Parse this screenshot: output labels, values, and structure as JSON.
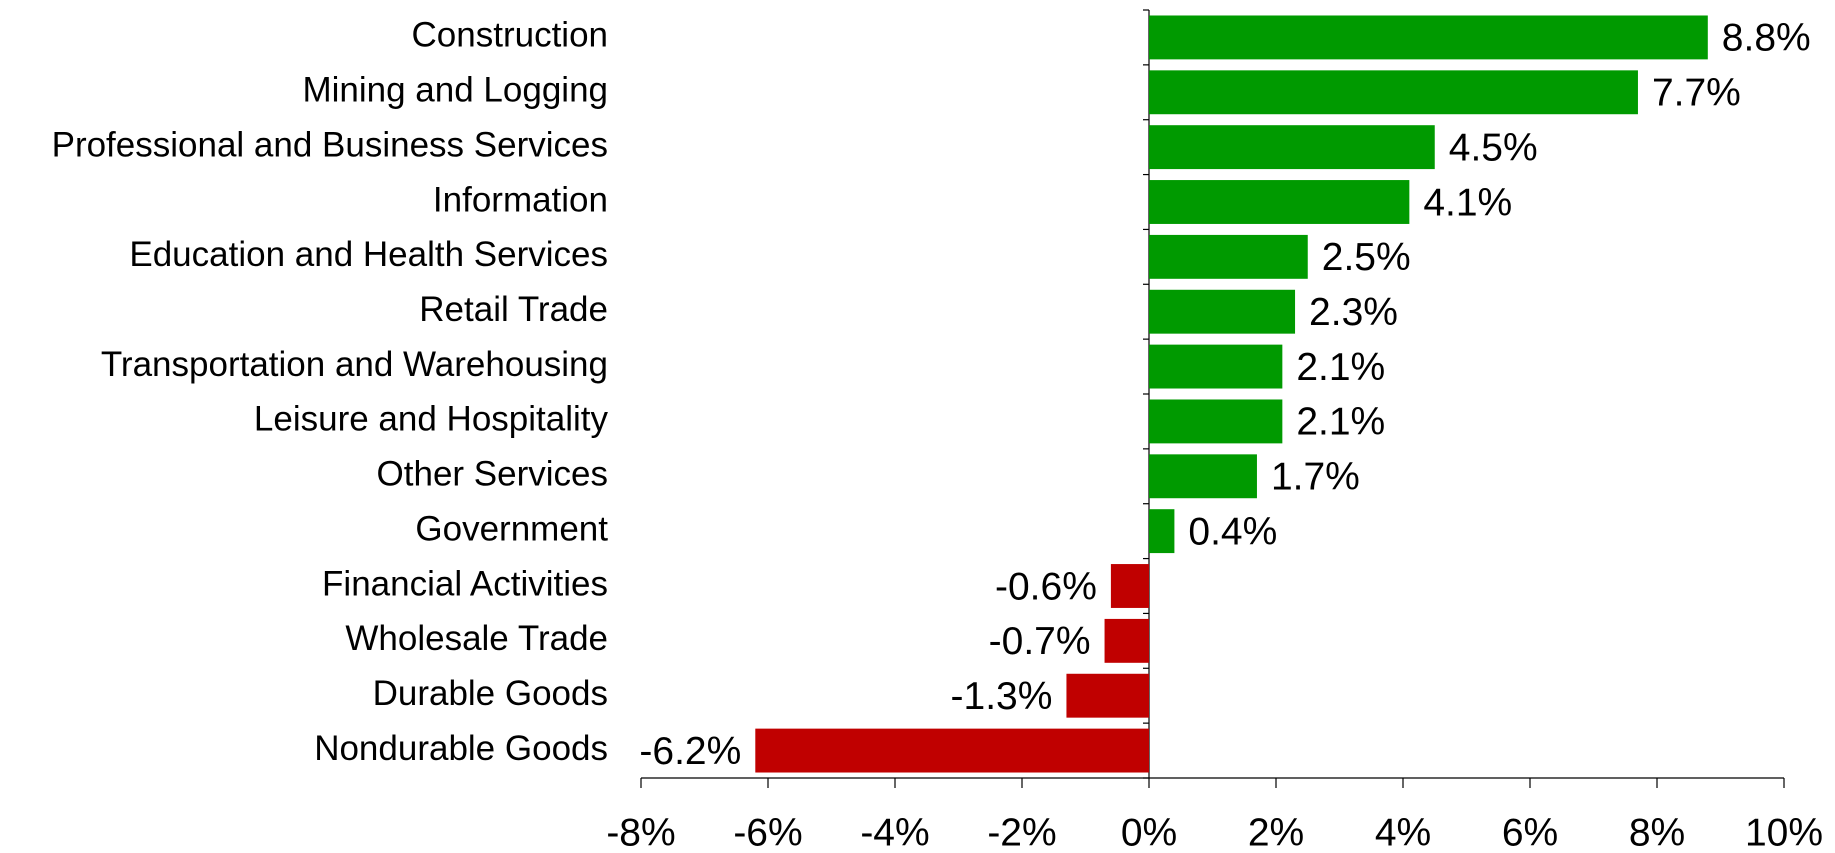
{
  "chart_data": {
    "type": "hbar",
    "categories": [
      "Construction",
      "Mining and Logging",
      "Professional and Business Services",
      "Information",
      "Education and Health Services",
      "Retail Trade",
      "Transportation and Warehousing",
      "Leisure and Hospitality",
      "Other Services",
      "Government",
      "Financial Activities",
      "Wholesale Trade",
      "Durable Goods",
      "Nondurable Goods"
    ],
    "values": [
      8.8,
      7.7,
      4.5,
      4.1,
      2.5,
      2.3,
      2.1,
      2.1,
      1.7,
      0.4,
      -0.6,
      -0.7,
      -1.3,
      -6.2
    ],
    "value_labels": [
      "8.8%",
      "7.7%",
      "4.5%",
      "4.1%",
      "2.5%",
      "2.3%",
      "2.1%",
      "2.1%",
      "1.7%",
      "0.4%",
      "-0.6%",
      "-0.7%",
      "-1.3%",
      "-6.2%"
    ],
    "colors": [
      "#009a00",
      "#009a00",
      "#009a00",
      "#009a00",
      "#009a00",
      "#009a00",
      "#009a00",
      "#009a00",
      "#009a00",
      "#009a00",
      "#c00000",
      "#c00000",
      "#c00000",
      "#c00000"
    ],
    "xlim": [
      -8,
      10
    ],
    "xticks": [
      {
        "value": -8,
        "label": "-8%"
      },
      {
        "value": -6,
        "label": "-6%"
      },
      {
        "value": -4,
        "label": "-4%"
      },
      {
        "value": -2,
        "label": "-2%"
      },
      {
        "value": 0,
        "label": "0%"
      },
      {
        "value": 2,
        "label": "2%"
      },
      {
        "value": 4,
        "label": "4%"
      },
      {
        "value": 6,
        "label": "6%"
      },
      {
        "value": 8,
        "label": "8%"
      },
      {
        "value": 10,
        "label": "10%"
      }
    ],
    "grid": false
  }
}
